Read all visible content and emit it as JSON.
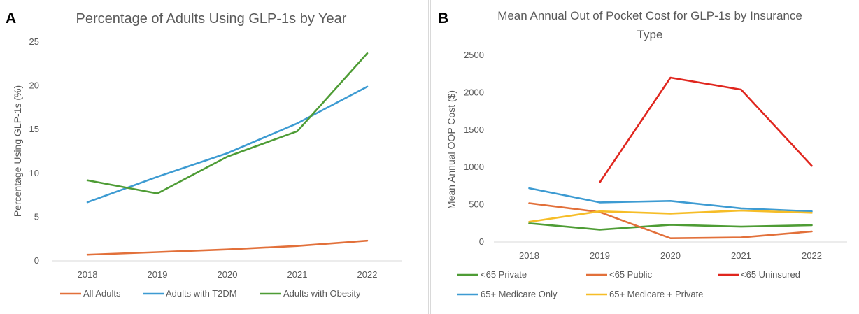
{
  "chart_data": [
    {
      "panel_label": "A",
      "type": "line",
      "title": "Percentage of Adults Using GLP-1s by Year",
      "xlabel": "",
      "ylabel": "Percentage Using GLP-1s (%)",
      "x": [
        "2018",
        "2019",
        "2020",
        "2021",
        "2022"
      ],
      "yticks": [
        "0",
        "5",
        "10",
        "15",
        "20",
        "25"
      ],
      "ylim": [
        0,
        25
      ],
      "grid": false,
      "legend_position": "bottom",
      "series": [
        {
          "name": "All Adults",
          "color": "#e2703a",
          "values": [
            0.7,
            1.0,
            1.3,
            1.7,
            2.3
          ]
        },
        {
          "name": "Adults with T2DM",
          "color": "#3d9bd2",
          "values": [
            6.7,
            9.6,
            12.3,
            15.7,
            19.9
          ]
        },
        {
          "name": "Adults with Obesity",
          "color": "#4e9c35",
          "values": [
            9.2,
            7.7,
            11.9,
            14.8,
            23.7
          ]
        }
      ]
    },
    {
      "panel_label": "B",
      "type": "line",
      "title": "Mean Annual Out of Pocket Cost for GLP-1s by Insurance Type",
      "title_lines": [
        "Mean Annual Out of Pocket Cost for GLP-1s by Insurance",
        "Type"
      ],
      "xlabel": "",
      "ylabel": "Mean Annual OOP Cost ($)",
      "x": [
        "2018",
        "2019",
        "2020",
        "2021",
        "2022"
      ],
      "yticks": [
        "0",
        "500",
        "1000",
        "1500",
        "2000",
        "2500"
      ],
      "ylim": [
        0,
        2500
      ],
      "grid": false,
      "legend_position": "bottom",
      "series": [
        {
          "name": "<65 Private",
          "color": "#4e9c35",
          "values": [
            250,
            165,
            230,
            205,
            225
          ]
        },
        {
          "name": "<65 Public",
          "color": "#e2703a",
          "values": [
            520,
            400,
            50,
            60,
            140
          ]
        },
        {
          "name": "<65 Uninsured",
          "color": "#e0261e",
          "values": [
            null,
            800,
            2200,
            2040,
            1020
          ]
        },
        {
          "name": "65+ Medicare Only",
          "color": "#3d9bd2",
          "values": [
            720,
            530,
            550,
            450,
            410
          ]
        },
        {
          "name": "65+ Medicare + Private",
          "color": "#f6bd27",
          "values": [
            270,
            410,
            380,
            420,
            390
          ]
        }
      ]
    }
  ]
}
